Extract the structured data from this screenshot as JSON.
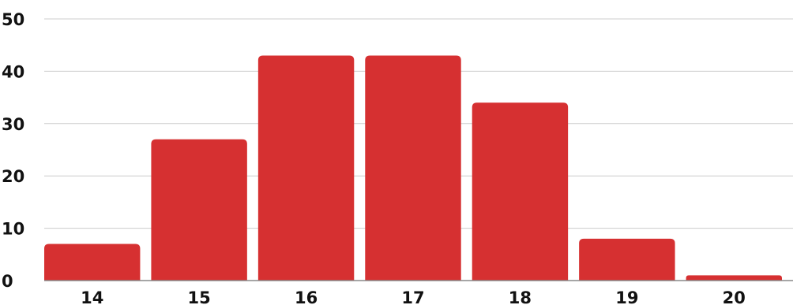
{
  "chart_data": {
    "type": "bar",
    "categories": [
      "14",
      "15",
      "16",
      "17",
      "18",
      "19",
      "20"
    ],
    "values": [
      7,
      27,
      43,
      43,
      34,
      8,
      1
    ],
    "title": "",
    "xlabel": "",
    "ylabel": "",
    "ylim": [
      0,
      50
    ],
    "y_ticks": [
      "0",
      "10",
      "20",
      "30",
      "40",
      "50"
    ],
    "grid": true,
    "legend": "none",
    "colors": {
      "bar": "#d63031",
      "grid": "#cccccc",
      "axis": "#888888",
      "text": "#111111"
    }
  }
}
